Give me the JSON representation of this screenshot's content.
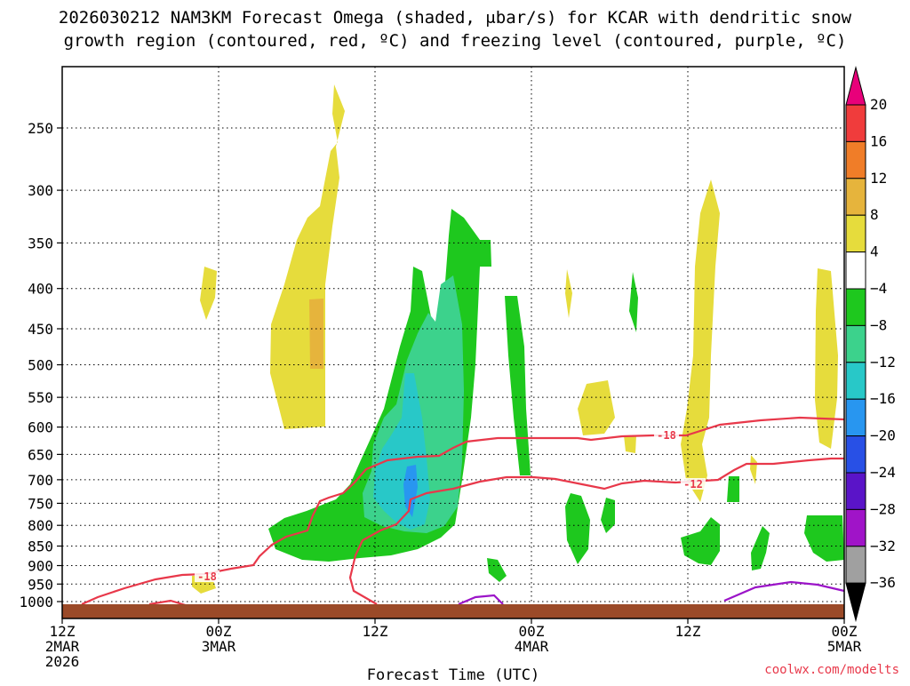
{
  "chart_data": {
    "type": "heatmap",
    "title_line1": "2026030212 NAM3KM Forecast Omega (shaded, μbar/s) for KCAR with dendritic snow",
    "title_line2": "growth region (contoured, red, ºC) and freezing level (contoured, purple, ºC)",
    "xlabel": "Forecast Time (UTC)",
    "credit": "coolwx.com/modelts",
    "x_range_hours": [
      0,
      60
    ],
    "x_ticks": [
      {
        "hour": 0,
        "line1": "12Z",
        "line2": "2MAR",
        "line3": "2026"
      },
      {
        "hour": 12,
        "line1": "00Z",
        "line2": "3MAR",
        "line3": ""
      },
      {
        "hour": 24,
        "line1": "12Z",
        "line2": "",
        "line3": ""
      },
      {
        "hour": 36,
        "line1": "00Z",
        "line2": "4MAR",
        "line3": ""
      },
      {
        "hour": 48,
        "line1": "12Z",
        "line2": "",
        "line3": ""
      },
      {
        "hour": 60,
        "line1": "00Z",
        "line2": "5MAR",
        "line3": ""
      }
    ],
    "y_ticks_hpa": [
      250,
      300,
      350,
      400,
      450,
      500,
      550,
      600,
      650,
      700,
      750,
      800,
      850,
      900,
      950,
      1000
    ],
    "y_range_hpa": [
      200,
      1040
    ],
    "colorbar": {
      "labels": [
        "20",
        "16",
        "12",
        "8",
        "4",
        "−4",
        "−8",
        "−12",
        "−16",
        "−20",
        "−24",
        "−28",
        "−32",
        "−36"
      ],
      "colors": [
        "#e8007a",
        "#f03c3c",
        "#f07d28",
        "#e6b43c",
        "#e6dc3c",
        "#ffffff",
        "#1ec81e",
        "#3cd28c",
        "#28c8c8",
        "#2896f0",
        "#2850e6",
        "#5a14c8",
        "#a014c8",
        "#a0a0a0",
        "#000000"
      ]
    },
    "contour_labels": [
      "-18",
      "-18",
      "-12"
    ],
    "colors": {
      "dgz_contour": "#e8384a",
      "freezing_contour": "#9b14c8",
      "terrain": "#9b4a28",
      "grid": "#000000"
    }
  }
}
